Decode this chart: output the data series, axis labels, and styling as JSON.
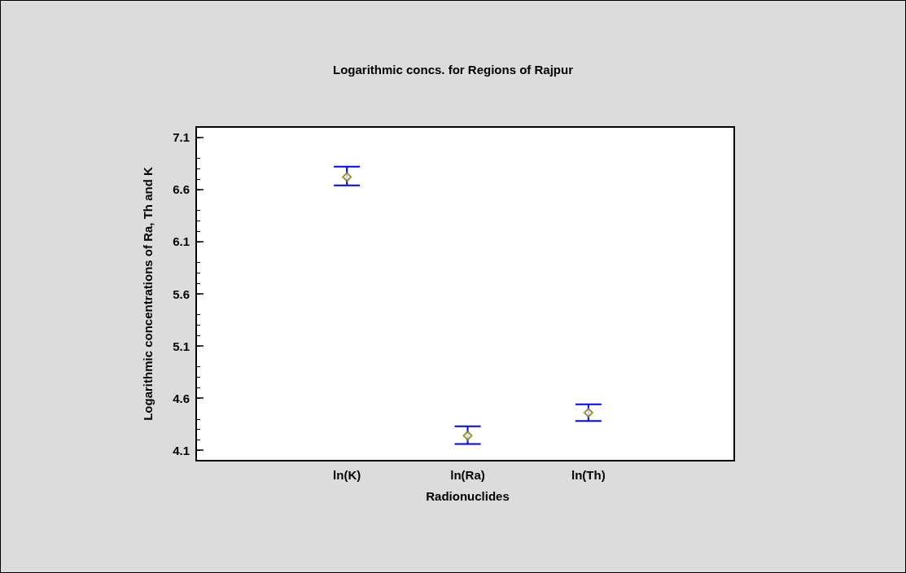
{
  "chart_data": {
    "type": "scatter",
    "title": "Logarithmic concs. for Regions of Rajpur",
    "xlabel": "Radionuclides",
    "ylabel": "Logarithmic concentrations of Ra, Th and K",
    "categories": [
      "ln(K)",
      "ln(Ra)",
      "ln(Th)"
    ],
    "values": [
      6.72,
      4.24,
      4.46
    ],
    "errors": [
      [
        6.64,
        6.82
      ],
      [
        4.16,
        4.33
      ],
      [
        4.38,
        4.54
      ]
    ],
    "color": "#808000",
    "marker": "diamond",
    "ylim": [
      4.0,
      7.2
    ],
    "yticks": [
      4.1,
      4.6,
      5.1,
      5.6,
      6.1,
      6.6,
      7.1
    ],
    "grid": false
  }
}
